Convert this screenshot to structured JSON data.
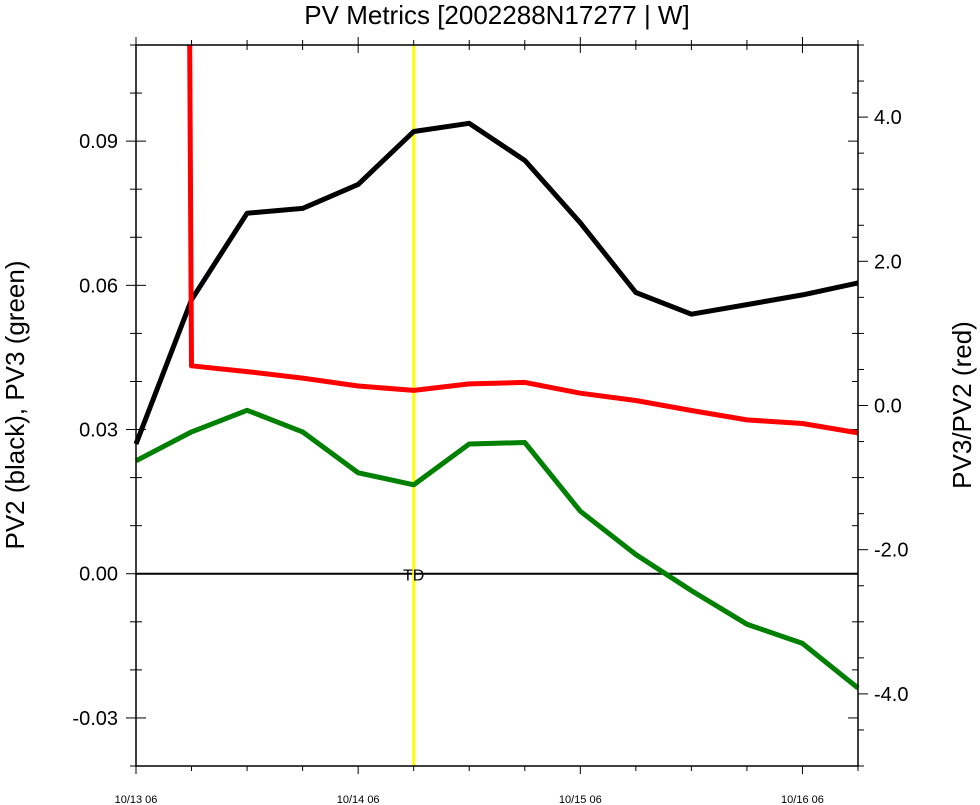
{
  "chart_data": {
    "type": "line",
    "title": "PV Metrics [2002288N17277 | W]",
    "ylabel_left": "PV2 (black), PV3 (green)",
    "ylabel_right": "PV3/PV2 (red)",
    "xlim": [
      0,
      78
    ],
    "ylim_left": [
      -0.04,
      0.11
    ],
    "ylim_right": [
      -5.0,
      5.0
    ],
    "x_ticks": [
      {
        "x": 0,
        "label": "10/13 06"
      },
      {
        "x": 24,
        "label": "10/14 06"
      },
      {
        "x": 48,
        "label": "10/15 06"
      },
      {
        "x": 72,
        "label": "10/16 06"
      }
    ],
    "y_ticks_left": [
      {
        "v": -0.03,
        "label": "-0.03"
      },
      {
        "v": 0.0,
        "label": "0.00"
      },
      {
        "v": 0.03,
        "label": "0.03"
      },
      {
        "v": 0.06,
        "label": "0.06"
      },
      {
        "v": 0.09,
        "label": "0.09"
      }
    ],
    "y_ticks_right": [
      {
        "v": -4.0,
        "label": "-4.0"
      },
      {
        "v": -2.0,
        "label": "-2.0"
      },
      {
        "v": 0.0,
        "label": "0.0"
      },
      {
        "v": 2.0,
        "label": "2.0"
      },
      {
        "v": 4.0,
        "label": "4.0"
      }
    ],
    "series": [
      {
        "color": "#000000",
        "axis": "left",
        "x": [
          0,
          6,
          12,
          18,
          24,
          30,
          36,
          42,
          48,
          54,
          60,
          66,
          72,
          78
        ],
        "y": [
          0.027,
          0.057,
          0.075,
          0.076,
          0.081,
          0.092,
          0.0937,
          0.086,
          0.073,
          0.0585,
          0.054,
          0.056,
          0.058,
          0.0605
        ]
      },
      {
        "color": "#ff0000",
        "axis": "right",
        "x": [
          5.8,
          6,
          12,
          18,
          24,
          30,
          36,
          42,
          48,
          54,
          60,
          66,
          72,
          78
        ],
        "y": [
          5.0,
          0.55,
          0.47,
          0.38,
          0.27,
          0.21,
          0.3,
          0.32,
          0.17,
          0.07,
          -0.07,
          -0.2,
          -0.25,
          -0.38
        ]
      },
      {
        "color": "#008000",
        "axis": "left",
        "x": [
          0,
          6,
          12,
          18,
          24,
          30,
          36,
          42,
          48,
          54,
          60,
          66,
          72,
          78
        ],
        "y": [
          0.0235,
          0.0295,
          0.034,
          0.0295,
          0.021,
          0.0185,
          0.027,
          0.0273,
          0.013,
          0.004,
          -0.0035,
          -0.0105,
          -0.0145,
          -0.0238
        ]
      }
    ],
    "vline": {
      "x": 30,
      "color": "#ffff00"
    },
    "zero_line": {
      "y": 0.0
    },
    "annotations": [
      {
        "x": 30,
        "y": 0.0,
        "text": "TD"
      }
    ]
  }
}
